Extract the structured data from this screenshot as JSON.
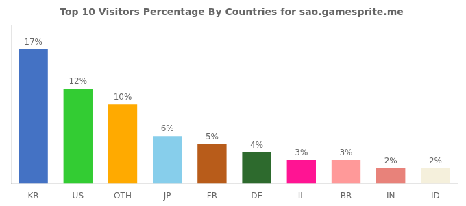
{
  "chart_data": {
    "type": "bar",
    "title": "Top 10 Visitors Percentage By Countries for sao.gamesprite.me",
    "categories": [
      "KR",
      "US",
      "OTH",
      "JP",
      "FR",
      "DE",
      "IL",
      "BR",
      "IN",
      "ID"
    ],
    "values": [
      17,
      12,
      10,
      6,
      5,
      4,
      3,
      3,
      2,
      2
    ],
    "value_labels": [
      "17%",
      "12%",
      "10%",
      "6%",
      "5%",
      "4%",
      "3%",
      "3%",
      "2%",
      "2%"
    ],
    "data_labels": true,
    "colors": [
      "#4472c4",
      "#33cc33",
      "#ffaa00",
      "#87ceeb",
      "#b85c1a",
      "#2d6a2d",
      "#ff1493",
      "#ff9999",
      "#e8827a",
      "#f5f0dc"
    ],
    "ylim": [
      0,
      20
    ],
    "grid": false,
    "tick_labels": "x"
  }
}
